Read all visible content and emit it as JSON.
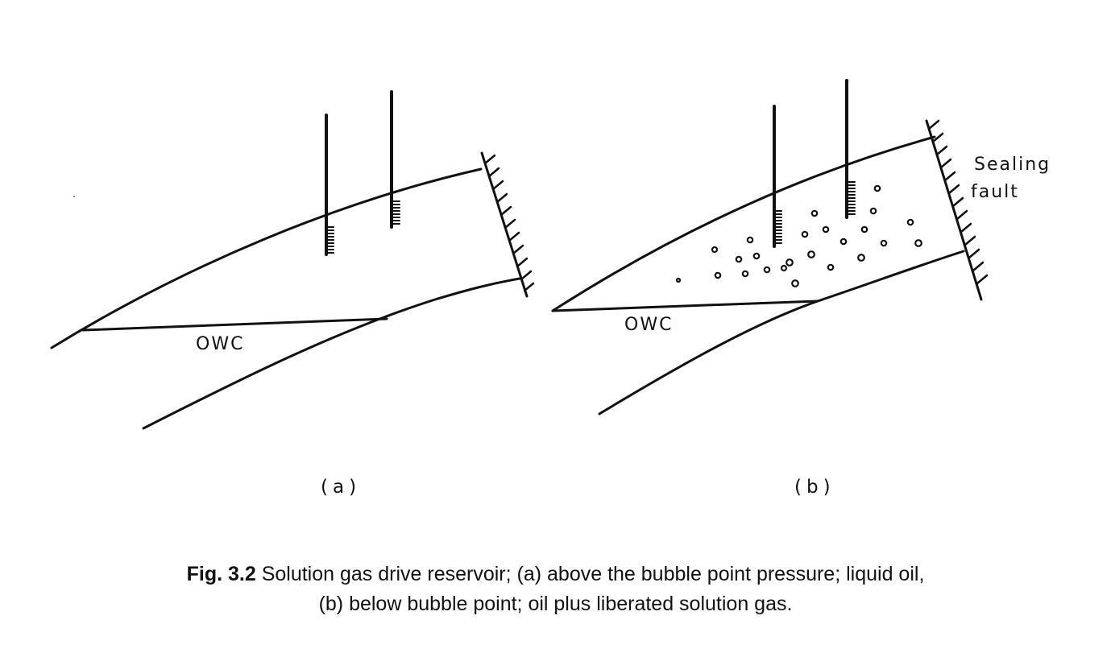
{
  "panels": {
    "a": {
      "label": "(a)",
      "owc_label": "OWC"
    },
    "b": {
      "label": "(b)",
      "owc_label": "OWC",
      "fault_label_line1": "Sealing",
      "fault_label_line2": "fault"
    }
  },
  "caption": {
    "fig_number": "Fig. 3.2",
    "line1_text": "Solution gas drive reservoir; (a) above the bubble point pressure; liquid oil,",
    "line2_text": "(b) below bubble point; oil plus liberated solution gas."
  }
}
